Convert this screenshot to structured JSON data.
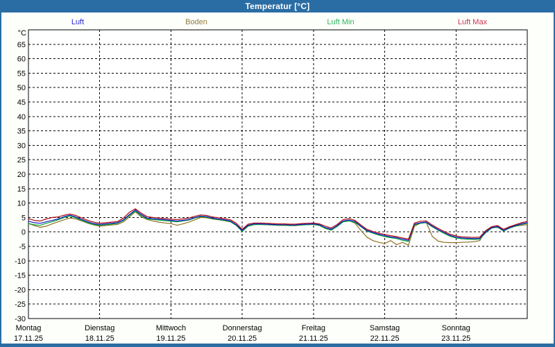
{
  "window": {
    "title": "Temperatur [°C]"
  },
  "colors": {
    "titlebar_bg": "#2A6DA4",
    "titlebar_text": "#FFFFFF",
    "window_frame": "#2A6DA4",
    "body_bg": "#FDFFFB",
    "plot_bg": "#FFFFFF",
    "grid": "#000000",
    "axis_text": "#000000"
  },
  "chart_data": {
    "type": "line",
    "title": "Temperatur [°C]",
    "y_unit": "°C",
    "ylim": [
      -30,
      70
    ],
    "y_tick_min": -30,
    "y_tick_max": 65,
    "y_tick_step": 5,
    "grid": "dashed",
    "legend_position": "top",
    "x_description": "7 days, samples every 2 hours, 85 points from Montag 17.11.25 00:00 to 24.11.25 00:00",
    "days": [
      {
        "name": "Montag",
        "date": "17.11.25"
      },
      {
        "name": "Dienstag",
        "date": "18.11.25"
      },
      {
        "name": "Mittwoch",
        "date": "19.11.25"
      },
      {
        "name": "Donnerstag",
        "date": "20.11.25"
      },
      {
        "name": "Freitag",
        "date": "21.11.25"
      },
      {
        "name": "Samstag",
        "date": "22.11.25"
      },
      {
        "name": "Sonntag",
        "date": "23.11.25"
      }
    ],
    "draw_order": [
      1,
      2,
      0,
      3
    ],
    "series": [
      {
        "id": "luft",
        "name": "Luft",
        "color": "#1414C8",
        "legend_color": "#2A2AD0",
        "values": [
          3.7,
          3.2,
          3.0,
          3.5,
          4.0,
          4.5,
          5.3,
          5.8,
          5.2,
          4.3,
          3.5,
          2.9,
          2.6,
          2.8,
          3.0,
          3.2,
          4.2,
          6.0,
          7.6,
          6.0,
          4.8,
          4.6,
          4.4,
          4.2,
          4.0,
          3.8,
          4.0,
          4.3,
          5.0,
          5.5,
          5.3,
          4.8,
          4.5,
          4.2,
          3.8,
          2.5,
          0.5,
          2.3,
          2.8,
          2.8,
          2.7,
          2.6,
          2.5,
          2.5,
          2.4,
          2.4,
          2.6,
          2.7,
          2.8,
          2.5,
          1.5,
          0.9,
          2.2,
          3.8,
          4.1,
          3.6,
          2.0,
          0.5,
          -0.2,
          -0.8,
          -1.3,
          -1.7,
          -2.0,
          -2.5,
          -2.9,
          2.7,
          3.2,
          3.4,
          2.0,
          0.8,
          -0.2,
          -1.2,
          -1.8,
          -2.1,
          -2.2,
          -2.3,
          -2.2,
          0.0,
          1.5,
          1.9,
          0.5,
          1.5,
          2.2,
          2.8,
          3.2
        ]
      },
      {
        "id": "boden",
        "name": "Boden",
        "color": "#8B6F20",
        "legend_color": "#8F7B3C",
        "values": [
          2.9,
          2.2,
          1.6,
          2.0,
          2.8,
          3.5,
          4.2,
          4.8,
          4.5,
          3.8,
          3.0,
          2.4,
          2.0,
          2.2,
          2.4,
          2.6,
          3.5,
          5.2,
          7.0,
          5.2,
          4.3,
          3.8,
          3.4,
          3.1,
          2.9,
          2.3,
          2.8,
          3.4,
          4.2,
          5.0,
          4.9,
          4.5,
          4.2,
          3.9,
          3.5,
          2.3,
          0.8,
          2.2,
          2.6,
          2.6,
          2.5,
          2.4,
          2.3,
          2.3,
          2.2,
          2.2,
          2.4,
          2.5,
          2.6,
          2.3,
          1.5,
          1.0,
          2.0,
          3.6,
          3.9,
          3.0,
          0.5,
          -1.8,
          -3.0,
          -3.6,
          -4.0,
          -3.0,
          -4.4,
          -3.6,
          -4.6,
          2.0,
          3.0,
          3.3,
          -1.5,
          -3.2,
          -3.6,
          -3.7,
          -3.7,
          -3.6,
          -3.5,
          -3.4,
          -3.0,
          0.5,
          1.8,
          1.5,
          1.0,
          1.5,
          2.0,
          2.3,
          2.5
        ]
      },
      {
        "id": "luft-min",
        "name": "Luft Min",
        "color": "#00A432",
        "legend_color": "#2FB45C",
        "values": [
          2.9,
          2.5,
          2.3,
          3.0,
          3.5,
          4.2,
          5.0,
          5.5,
          4.9,
          4.0,
          3.2,
          2.6,
          2.3,
          2.5,
          2.7,
          3.0,
          4.0,
          5.7,
          7.2,
          5.6,
          4.5,
          4.3,
          4.1,
          3.9,
          3.7,
          3.5,
          3.8,
          4.1,
          4.8,
          5.3,
          5.1,
          4.6,
          4.3,
          4.0,
          3.6,
          2.2,
          0.2,
          2.0,
          2.5,
          2.6,
          2.5,
          2.4,
          2.3,
          2.3,
          2.2,
          2.2,
          2.4,
          2.5,
          2.6,
          2.2,
          1.2,
          0.6,
          1.9,
          3.5,
          3.8,
          3.3,
          1.8,
          0.3,
          -0.4,
          -1.1,
          -1.6,
          -2.0,
          -2.3,
          -2.9,
          -3.3,
          2.4,
          3.0,
          3.2,
          1.8,
          0.6,
          -0.5,
          -1.5,
          -2.1,
          -2.4,
          -2.5,
          -2.6,
          -2.5,
          -0.3,
          1.3,
          1.7,
          0.3,
          1.3,
          2.0,
          2.6,
          3.0
        ]
      },
      {
        "id": "luft-max",
        "name": "Luft Max",
        "color": "#A80A0A",
        "legend_color": "#CC3355",
        "values": [
          4.6,
          4.0,
          3.8,
          4.5,
          5.0,
          5.2,
          5.8,
          6.2,
          5.7,
          4.8,
          4.0,
          3.4,
          3.0,
          3.2,
          3.4,
          3.6,
          4.8,
          6.8,
          8.0,
          6.5,
          5.3,
          5.0,
          4.8,
          4.6,
          4.4,
          4.3,
          4.5,
          4.8,
          5.4,
          5.9,
          5.7,
          5.2,
          4.9,
          4.6,
          4.2,
          3.0,
          0.9,
          2.7,
          3.1,
          3.1,
          3.0,
          2.9,
          2.8,
          2.8,
          2.7,
          2.7,
          2.9,
          3.0,
          3.1,
          2.8,
          2.0,
          1.4,
          2.6,
          4.3,
          4.6,
          4.0,
          2.4,
          0.9,
          0.2,
          -0.4,
          -0.9,
          -1.3,
          -1.6,
          -2.1,
          -2.5,
          3.1,
          3.7,
          3.8,
          2.4,
          1.2,
          0.2,
          -0.8,
          -1.4,
          -1.7,
          -1.8,
          -1.9,
          -1.8,
          0.4,
          1.8,
          2.2,
          0.9,
          1.8,
          2.5,
          3.2,
          3.6
        ]
      }
    ]
  }
}
